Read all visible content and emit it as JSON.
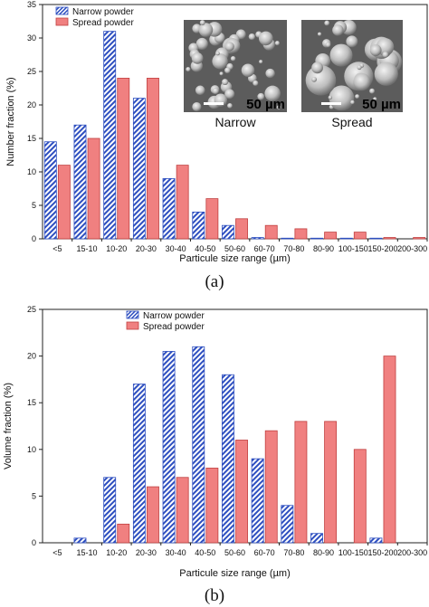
{
  "chart_data": [
    {
      "type": "bar",
      "panel_label": "(a)",
      "categories": [
        "<5",
        "15-10",
        "10-20",
        "20-30",
        "30-40",
        "40-50",
        "50-60",
        "60-70",
        "70-80",
        "80-90",
        "100-150",
        "150-200",
        "200-300"
      ],
      "series": [
        {
          "name": "Narrow powder",
          "color": "#2e4fc0",
          "values": [
            14.5,
            17,
            31,
            21,
            9,
            4,
            2,
            0.2,
            0.1,
            0.1,
            0.1,
            0.1,
            0
          ]
        },
        {
          "name": "Spread powder",
          "color": "#f08080",
          "values": [
            11,
            15,
            24,
            24,
            11,
            6,
            3,
            2,
            1.5,
            1,
            1,
            0.2,
            0.2
          ]
        }
      ],
      "xlabel": "Particule size range (µm)",
      "ylabel": "Number fraction (%)",
      "ylim": [
        0,
        35
      ],
      "yticks": [
        0,
        5,
        10,
        15,
        20,
        25,
        30,
        35
      ],
      "legend": "top-left",
      "insets": [
        {
          "caption": "Narrow",
          "scale_bar": "50 µm"
        },
        {
          "caption": "Spread",
          "scale_bar": "50 µm"
        }
      ]
    },
    {
      "type": "bar",
      "panel_label": "(b)",
      "categories": [
        "<5",
        "15-10",
        "10-20",
        "20-30",
        "30-40",
        "40-50",
        "50-60",
        "60-70",
        "70-80",
        "80-90",
        "100-150",
        "150-200",
        "200-300"
      ],
      "series": [
        {
          "name": "Narrow powder",
          "color": "#2e4fc0",
          "values": [
            0,
            0.5,
            7,
            17,
            20.5,
            21,
            18,
            9,
            4,
            1,
            0,
            0.5,
            0
          ]
        },
        {
          "name": "Spread powder",
          "color": "#f08080",
          "values": [
            0,
            0,
            2,
            6,
            7,
            8,
            11,
            12,
            13,
            13,
            10,
            20,
            0
          ]
        }
      ],
      "xlabel": "Particule size range (µm)",
      "ylabel": "Volume fraction (%)",
      "ylim": [
        0,
        25
      ],
      "yticks": [
        0,
        5,
        10,
        15,
        20,
        25
      ],
      "legend": "top-left"
    }
  ]
}
